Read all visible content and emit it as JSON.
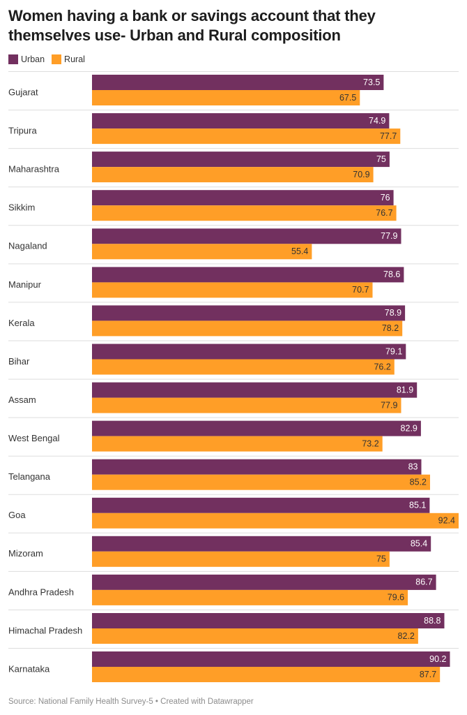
{
  "header": {
    "title": "Women having a bank or savings account that they themselves use- Urban and Rural composition"
  },
  "colors": {
    "urban": "#72305f",
    "rural": "#ff9e27",
    "separator": "#dddddd",
    "urban_label": "#ffffff",
    "rural_label": "#333333"
  },
  "footer": {
    "source": "Source: National Family Health Survey-5 • Created with Datawrapper"
  },
  "chart_data": {
    "type": "bar",
    "orientation": "horizontal",
    "title": "Women having a bank or savings account that they themselves use- Urban and Rural composition",
    "categories": [
      "Gujarat",
      "Tripura",
      "Maharashtra",
      "Sikkim",
      "Nagaland",
      "Manipur",
      "Kerala",
      "Bihar",
      "Assam",
      "West Bengal",
      "Telangana",
      "Goa",
      "Mizoram",
      "Andhra Pradesh",
      "Himachal Pradesh",
      "Karnataka"
    ],
    "series": [
      {
        "name": "Urban",
        "values": [
          73.5,
          74.9,
          75,
          76,
          77.9,
          78.6,
          78.9,
          79.1,
          81.9,
          82.9,
          83,
          85.1,
          85.4,
          86.7,
          88.8,
          90.2
        ]
      },
      {
        "name": "Rural",
        "values": [
          67.5,
          77.7,
          70.9,
          76.7,
          55.4,
          70.7,
          78.2,
          76.2,
          77.9,
          73.2,
          85.2,
          92.4,
          75,
          79.6,
          82.2,
          87.7
        ]
      }
    ],
    "value_labels": {
      "Urban": [
        "73.5",
        "74.9",
        "75",
        "76",
        "77.9",
        "78.6",
        "78.9",
        "79.1",
        "81.9",
        "82.9",
        "83",
        "85.1",
        "85.4",
        "86.7",
        "88.8",
        "90.2"
      ],
      "Rural": [
        "67.5",
        "77.7",
        "70.9",
        "76.7",
        "55.4",
        "70.7",
        "78.2",
        "76.2",
        "77.9",
        "73.2",
        "85.2",
        "92.4",
        "75",
        "79.6",
        "82.2",
        "87.7"
      ]
    },
    "xlim": [
      0,
      92.4
    ],
    "legend_position": "top-left",
    "grid": false
  }
}
